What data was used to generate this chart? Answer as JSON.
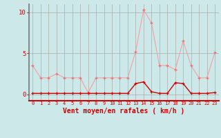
{
  "x": [
    0,
    1,
    2,
    3,
    4,
    5,
    6,
    7,
    8,
    9,
    10,
    11,
    12,
    13,
    14,
    15,
    16,
    17,
    18,
    19,
    20,
    21,
    22,
    23
  ],
  "rafales": [
    3.5,
    2.0,
    2.0,
    2.5,
    2.0,
    2.0,
    2.0,
    0.2,
    2.0,
    2.0,
    2.0,
    2.0,
    2.0,
    5.2,
    10.3,
    8.7,
    3.5,
    3.5,
    3.0,
    6.5,
    3.5,
    2.0,
    2.0,
    5.1
  ],
  "moyen": [
    0.1,
    0.1,
    0.1,
    0.1,
    0.1,
    0.1,
    0.1,
    0.1,
    0.1,
    0.1,
    0.1,
    0.1,
    0.1,
    1.3,
    1.5,
    0.3,
    0.1,
    0.1,
    1.4,
    1.3,
    0.1,
    0.1,
    0.1,
    0.2
  ],
  "bg_color": "#cce8e8",
  "grid_color": "#aaaaaa",
  "line_color_rafales": "#f4a0a0",
  "line_color_moyen": "#cc0000",
  "marker_color_rafales": "#e87070",
  "marker_color_moyen": "#cc0000",
  "xlabel": "Vent moyen/en rafales ( km/h )",
  "ylabel_ticks": [
    0,
    5,
    10
  ],
  "ylim": [
    -0.8,
    11.0
  ],
  "xlim": [
    -0.5,
    23.5
  ],
  "xlabel_color": "#cc0000",
  "tick_color": "#cc0000",
  "axis_left_color": "#777777",
  "bottom_line_color": "#cc0000"
}
